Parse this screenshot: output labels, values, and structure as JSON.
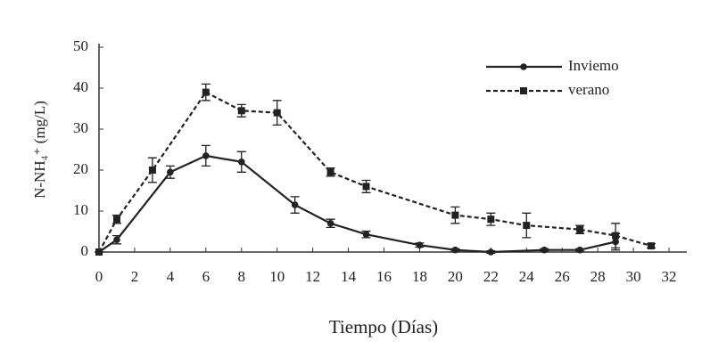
{
  "chart_data": {
    "type": "line",
    "x_label": "Tiempo (Días)",
    "y_label": "N-NH₄⁺ (mg/L)",
    "xlim": [
      0,
      33
    ],
    "ylim": [
      0,
      50
    ],
    "xticks": [
      0,
      2,
      4,
      6,
      8,
      10,
      12,
      14,
      16,
      18,
      20,
      22,
      24,
      26,
      28,
      30,
      32
    ],
    "yticks": [
      0,
      10,
      20,
      30,
      40,
      50
    ],
    "legend": "upper right",
    "series": [
      {
        "name": "Inviemo",
        "color": "#222222",
        "dash": false,
        "marker": "circle",
        "x": [
          0,
          1,
          4,
          6,
          8,
          11,
          13,
          15,
          18,
          20,
          22,
          25,
          27,
          29
        ],
        "values": [
          0,
          3,
          19.5,
          23.5,
          22,
          11.5,
          7,
          4.3,
          1.7,
          0.5,
          0,
          0.5,
          0.5,
          2.5
        ],
        "errors": [
          0,
          1,
          1.5,
          2.5,
          2.5,
          2,
          1,
          0.8,
          0.5,
          0.3,
          0.3,
          0.3,
          0.3,
          2
        ]
      },
      {
        "name": "verano",
        "color": "#222222",
        "dash": true,
        "marker": "square",
        "x": [
          0,
          1,
          3,
          6,
          8,
          10,
          13,
          15,
          20,
          22,
          24,
          27,
          29,
          31
        ],
        "values": [
          0,
          8,
          20,
          39,
          34.5,
          34,
          19.5,
          16,
          9,
          8,
          6.5,
          5.5,
          4,
          1.5
        ],
        "errors": [
          0,
          1,
          3,
          2,
          1.5,
          3,
          1,
          1.5,
          2,
          1.5,
          3,
          1,
          3,
          0.5
        ]
      }
    ]
  }
}
